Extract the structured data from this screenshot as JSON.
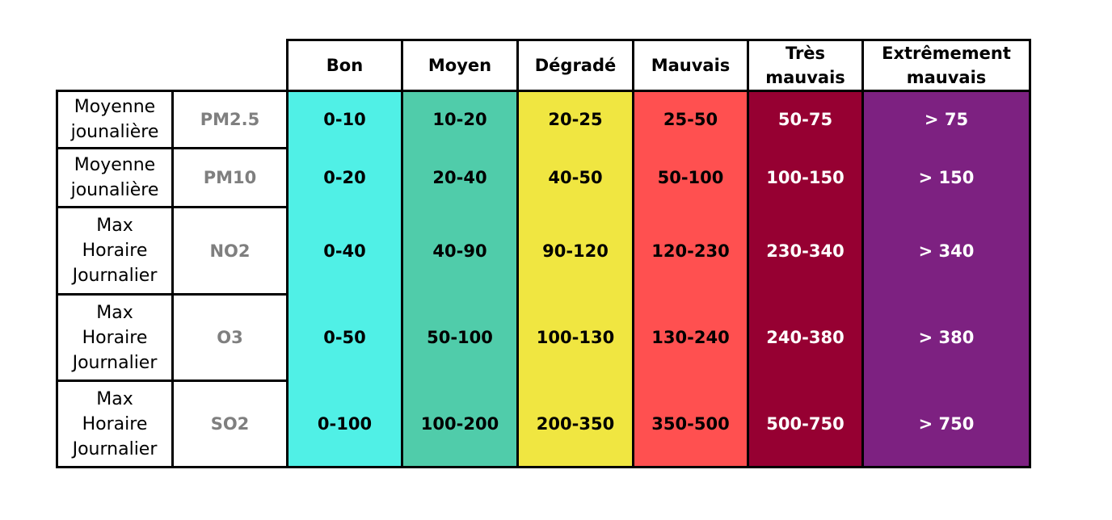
{
  "headers": [
    "Bon",
    "Moyen",
    "Dégradé",
    "Mauvais",
    "Très\nmauvais",
    "Extrêmement\nmauvais"
  ],
  "band_colors": [
    "#50f0e6",
    "#50ccaa",
    "#f0e641",
    "#ff5050",
    "#960032",
    "#7d2181"
  ],
  "rows": [
    {
      "averaging": "Moyenne\njounalière",
      "pollutant": "PM2.5",
      "values": [
        "0-10",
        "10-20",
        "20-25",
        "25-50",
        "50-75",
        "> 75"
      ]
    },
    {
      "averaging": "Moyenne\njounalière",
      "pollutant": "PM10",
      "values": [
        "0-20",
        "20-40",
        "40-50",
        "50-100",
        "100-150",
        "> 150"
      ]
    },
    {
      "averaging": "Max\nHoraire\nJournalier",
      "pollutant": "NO2",
      "values": [
        "0-40",
        "40-90",
        "90-120",
        "120-230",
        "230-340",
        "> 340"
      ]
    },
    {
      "averaging": "Max\nHoraire\nJournalier",
      "pollutant": "O3",
      "values": [
        "0-50",
        "50-100",
        "100-130",
        "130-240",
        "240-380",
        "> 380"
      ]
    },
    {
      "averaging": "Max\nHoraire\nJournalier",
      "pollutant": "SO2",
      "values": [
        "0-100",
        "100-200",
        "200-350",
        "350-500",
        "500-750",
        "> 750"
      ]
    }
  ]
}
